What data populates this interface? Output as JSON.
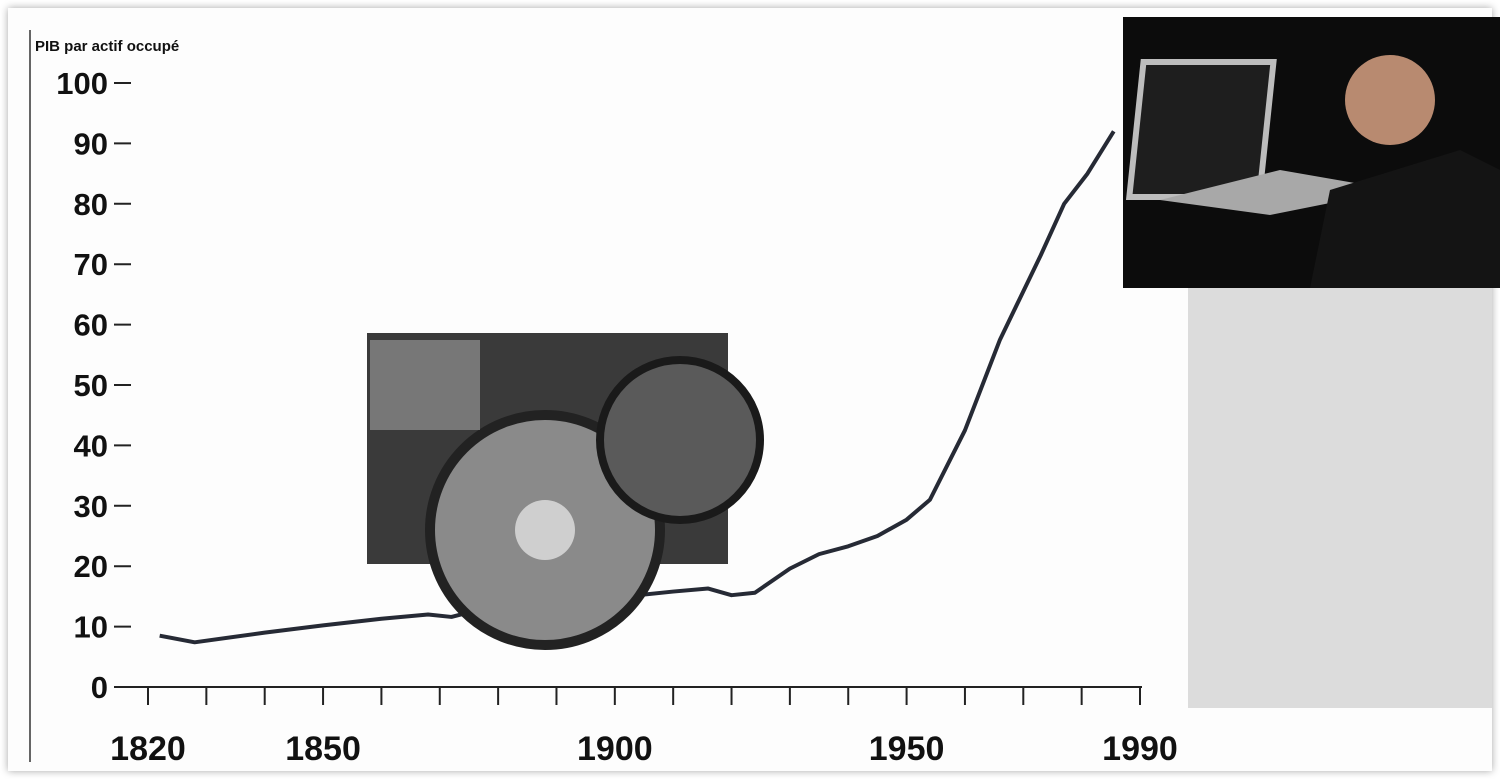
{
  "chart_data": {
    "type": "line",
    "y_label": "PIB par actif occupé",
    "x": [
      1822,
      1828,
      1840,
      1850,
      1860,
      1868,
      1872,
      1876,
      1890,
      1895,
      1902,
      1910,
      1916,
      1920,
      1924,
      1930,
      1935,
      1940,
      1945,
      1950,
      1954,
      1960,
      1966,
      1973,
      1977,
      1981,
      1985.5
    ],
    "series": [
      {
        "color": "#262a35",
        "values": [
          8.5,
          7.4,
          9,
          10.2,
          11.3,
          12,
          11.6,
          12.6,
          14.1,
          13,
          15,
          15.8,
          16.3,
          15.2,
          15.6,
          19.6,
          22,
          23.3,
          25,
          27.7,
          31,
          42.5,
          57.5,
          71.5,
          80,
          85,
          92
        ]
      }
    ],
    "xlim": [
      1820,
      1990
    ],
    "ylim": [
      0,
      100
    ],
    "xticks": [
      1820,
      1850,
      1900,
      1950,
      1990
    ],
    "minor_xticks": [
      1820,
      1830,
      1840,
      1850,
      1860,
      1870,
      1880,
      1890,
      1900,
      1910,
      1920,
      1930,
      1940,
      1950,
      1960,
      1970,
      1980,
      1990
    ],
    "yticks": [
      0,
      10,
      20,
      30,
      40,
      50,
      60,
      70,
      80,
      90,
      100
    ]
  }
}
